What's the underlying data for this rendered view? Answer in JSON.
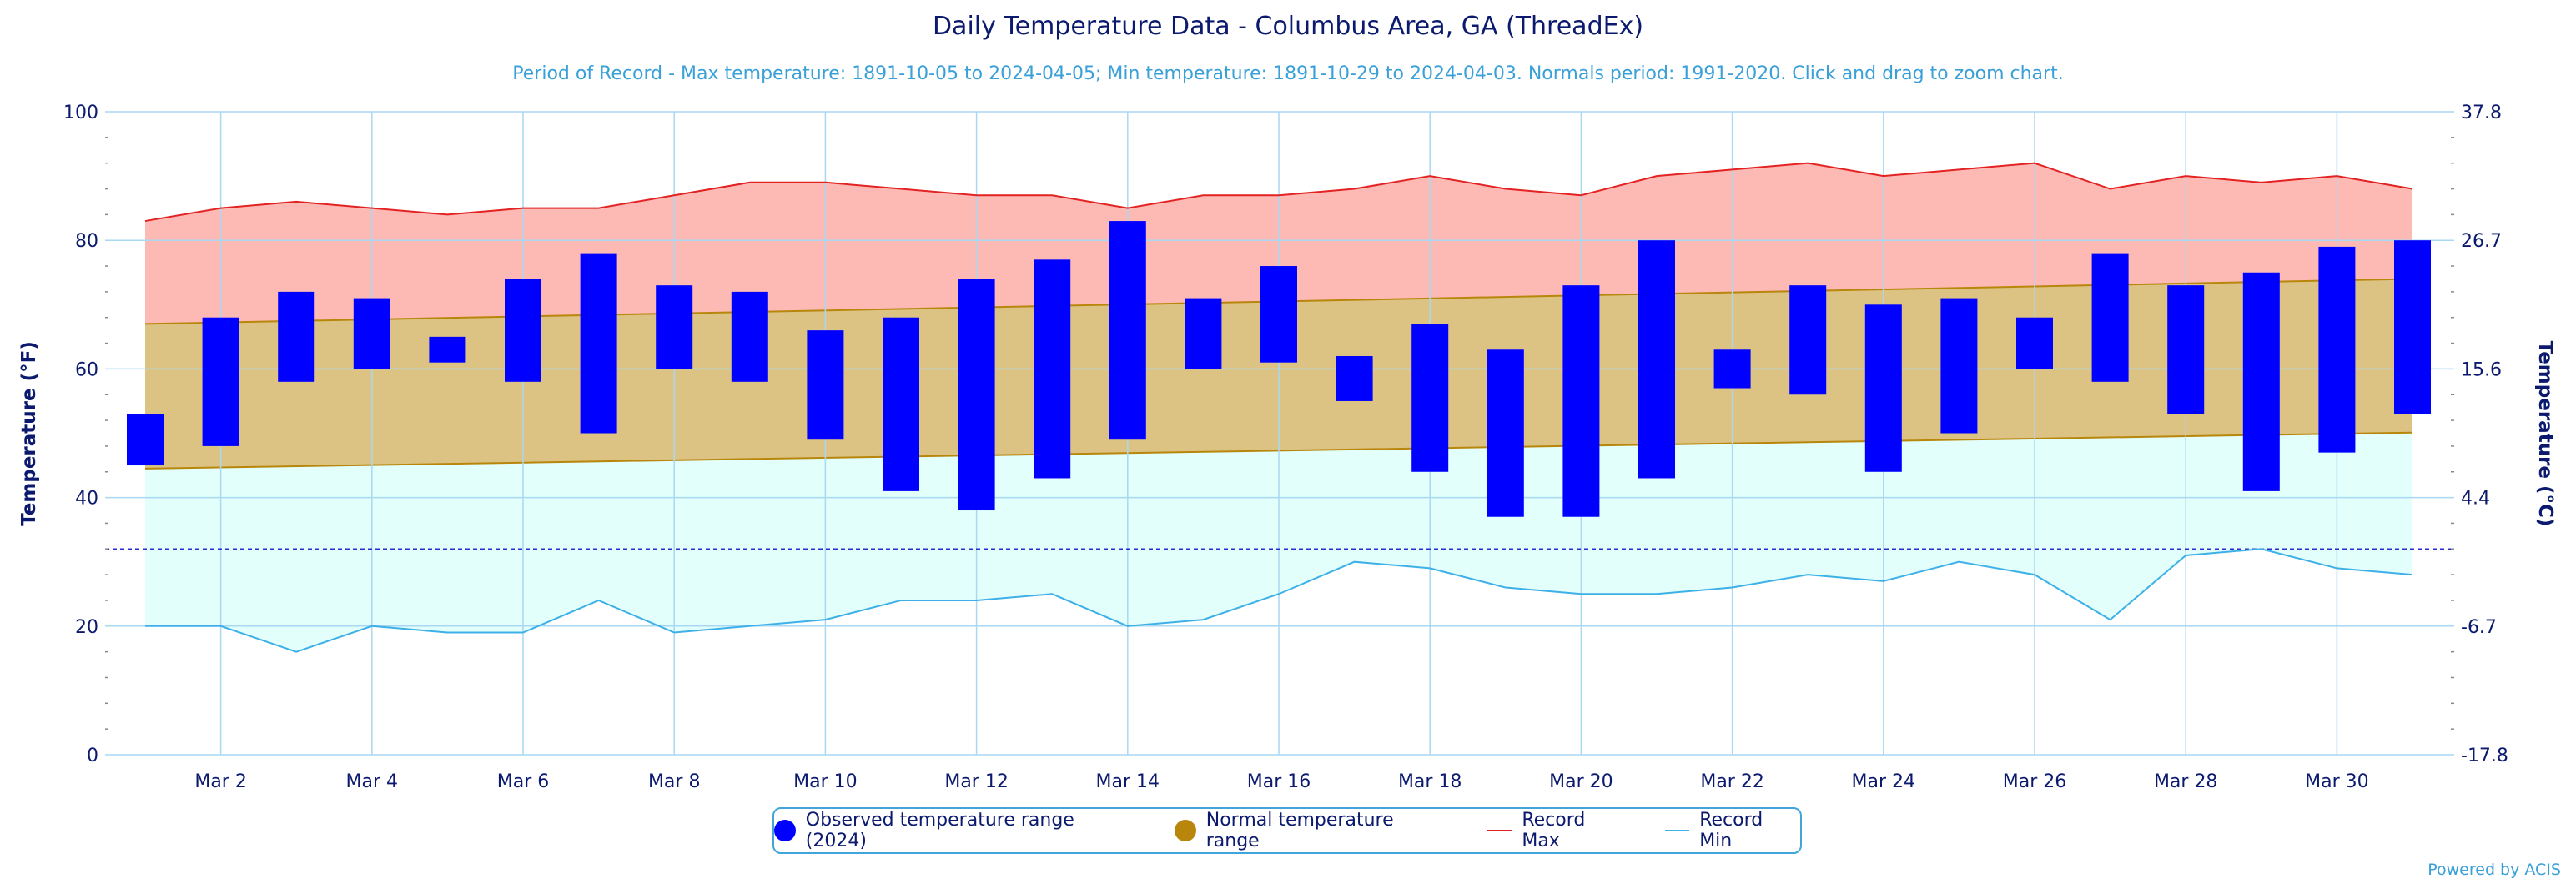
{
  "chart_data": {
    "type": "bar",
    "title": "Daily Temperature Data - Columbus Area, GA (ThreadEx)",
    "subtitle": "Period of Record - Max temperature: 1891-10-05 to 2024-04-05; Min temperature: 1891-10-29 to 2024-04-03. Normals period: 1991-2020. Click and drag to zoom chart.",
    "ylabel": "Temperature (°F)",
    "ylabel_right": "Temperature (°C)",
    "ylim": [
      0,
      100
    ],
    "yticks": [
      0,
      20,
      40,
      60,
      80,
      100
    ],
    "yticks_right": [
      "-17.8",
      "-6.7",
      "4.4",
      "15.6",
      "26.7",
      "37.8"
    ],
    "x_day_range": [
      1,
      31
    ],
    "xtick_days": [
      2,
      4,
      6,
      8,
      10,
      12,
      14,
      16,
      18,
      20,
      22,
      24,
      26,
      28,
      30
    ],
    "xtick_labels": [
      "Mar 2",
      "Mar 4",
      "Mar 6",
      "Mar 8",
      "Mar 10",
      "Mar 12",
      "Mar 14",
      "Mar 16",
      "Mar 18",
      "Mar 20",
      "Mar 22",
      "Mar 24",
      "Mar 26",
      "Mar 28",
      "Mar 30"
    ],
    "freezing_line": 32,
    "grid": true,
    "legend_position": "bottom-center",
    "observed": {
      "name": "Observed temperature range (2024)",
      "color": "#0000ff",
      "days": [
        1,
        2,
        3,
        4,
        5,
        6,
        7,
        8,
        9,
        10,
        11,
        12,
        13,
        14,
        15,
        16,
        17,
        18,
        19,
        20,
        21,
        22,
        23,
        24,
        25,
        26,
        27,
        28,
        29,
        30,
        31
      ],
      "low": [
        45,
        48,
        58,
        60,
        61,
        58,
        50,
        60,
        58,
        49,
        41,
        38,
        43,
        49,
        60,
        61,
        55,
        44,
        37,
        37,
        43,
        57,
        56,
        44,
        50,
        60,
        58,
        53,
        41,
        47,
        53
      ],
      "high": [
        53,
        68,
        72,
        71,
        65,
        74,
        78,
        73,
        72,
        66,
        68,
        74,
        77,
        83,
        71,
        76,
        62,
        67,
        63,
        73,
        80,
        63,
        73,
        70,
        71,
        68,
        78,
        73,
        75,
        79,
        80
      ]
    },
    "normal": {
      "name": "Normal temperature range",
      "color": "#b8860b",
      "fill": "#dcc383",
      "low_start": 44.5,
      "low_end": 50.1,
      "high_start": 67,
      "high_end": 74
    },
    "record_max": {
      "name": "Record Max",
      "color": "#e32222",
      "fill": "#fdbab5",
      "values": [
        83,
        85,
        86,
        85,
        84,
        85,
        85,
        87,
        89,
        89,
        88,
        87,
        87,
        85,
        87,
        87,
        88,
        90,
        88,
        87,
        90,
        91,
        92,
        90,
        91,
        92,
        88,
        90,
        89,
        90,
        88
      ]
    },
    "record_min": {
      "name": "Record Min",
      "color": "#3db0e8",
      "fill": "#e2fffc",
      "values": [
        20,
        20,
        16,
        20,
        19,
        19,
        24,
        19,
        20,
        21,
        24,
        24,
        25,
        20,
        21,
        25,
        30,
        29,
        26,
        25,
        25,
        26,
        28,
        27,
        30,
        28,
        21,
        31,
        32,
        29,
        28
      ]
    }
  },
  "credit": "Powered by ACIS"
}
